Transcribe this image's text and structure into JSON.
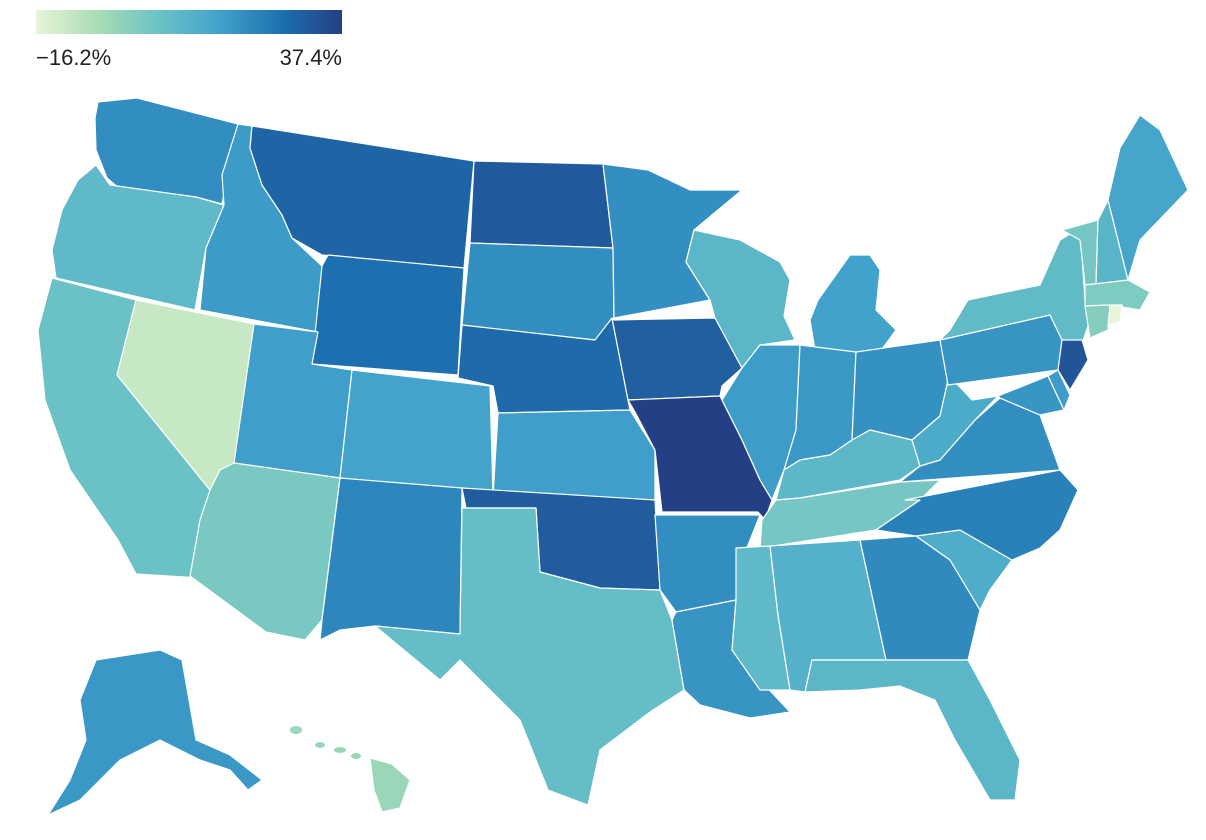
{
  "legend": {
    "min_label": "−16.2%",
    "max_label": "37.4%",
    "min_value": -16.2,
    "max_value": 37.4,
    "colors": [
      "#e8f5d8",
      "#a8ddb5",
      "#6cc3c6",
      "#41a2cb",
      "#1d70b0",
      "#253f84"
    ]
  },
  "chart_data": {
    "type": "choropleth",
    "units": "%",
    "range": [
      -16.2,
      37.4
    ],
    "states": [
      {
        "name": "WA",
        "value": 20.5
      },
      {
        "name": "OR",
        "value": 8.5
      },
      {
        "name": "CA",
        "value": 5.5
      },
      {
        "name": "NV",
        "value": -10.5
      },
      {
        "name": "ID",
        "value": 17.5
      },
      {
        "name": "MT",
        "value": 29.0
      },
      {
        "name": "WY",
        "value": 27.0
      },
      {
        "name": "UT",
        "value": 16.5
      },
      {
        "name": "AZ",
        "value": 3.0
      },
      {
        "name": "CO",
        "value": 15.5
      },
      {
        "name": "NM",
        "value": 22.0
      },
      {
        "name": "ND",
        "value": 31.5
      },
      {
        "name": "SD",
        "value": 20.5
      },
      {
        "name": "NE",
        "value": 28.0
      },
      {
        "name": "KS",
        "value": 16.5
      },
      {
        "name": "OK",
        "value": 31.0
      },
      {
        "name": "TX",
        "value": 7.0
      },
      {
        "name": "MN",
        "value": 20.0
      },
      {
        "name": "IA",
        "value": 30.5
      },
      {
        "name": "MO",
        "value": 37.4
      },
      {
        "name": "AR",
        "value": 20.5
      },
      {
        "name": "LA",
        "value": 19.0
      },
      {
        "name": "WI",
        "value": 9.5
      },
      {
        "name": "IL",
        "value": 17.0
      },
      {
        "name": "MI",
        "value": 16.0
      },
      {
        "name": "IN",
        "value": 18.0
      },
      {
        "name": "OH",
        "value": 19.5
      },
      {
        "name": "KY",
        "value": 9.0
      },
      {
        "name": "TN",
        "value": 3.5
      },
      {
        "name": "MS",
        "value": 8.5
      },
      {
        "name": "AL",
        "value": 11.0
      },
      {
        "name": "GA",
        "value": 21.0
      },
      {
        "name": "FL",
        "value": 9.5
      },
      {
        "name": "SC",
        "value": 12.5
      },
      {
        "name": "NC",
        "value": 23.0
      },
      {
        "name": "VA",
        "value": 20.5
      },
      {
        "name": "WV",
        "value": 13.0
      },
      {
        "name": "PA",
        "value": 19.0
      },
      {
        "name": "NY",
        "value": 8.0
      },
      {
        "name": "NJ",
        "value": 32.5
      },
      {
        "name": "MD",
        "value": 18.5
      },
      {
        "name": "DE",
        "value": 17.0
      },
      {
        "name": "VT",
        "value": 3.5
      },
      {
        "name": "NH",
        "value": 10.0
      },
      {
        "name": "ME",
        "value": 15.0
      },
      {
        "name": "MA",
        "value": 2.0
      },
      {
        "name": "CT",
        "value": 1.0
      },
      {
        "name": "RI",
        "value": -16.2
      },
      {
        "name": "AK",
        "value": 18.0
      },
      {
        "name": "HI",
        "value": -3.0
      }
    ]
  }
}
